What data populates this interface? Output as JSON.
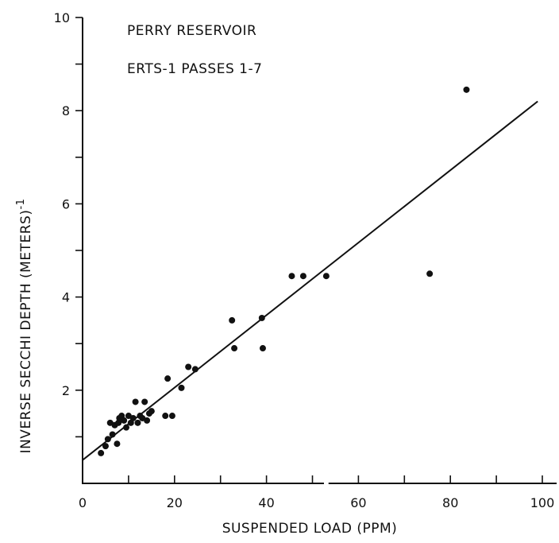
{
  "chart_data": {
    "type": "scatter",
    "title": "PERRY RESERVOIR",
    "subtitle": "ERTS-1  PASSES 1-7",
    "xlabel": "SUSPENDED LOAD (PPM)",
    "ylabel": "INVERSE SECCHI DEPTH (METERS)",
    "ylabel_superscript": "-1",
    "xlim": [
      0,
      100
    ],
    "ylim": [
      0,
      10
    ],
    "x_ticks": [
      "0",
      "20",
      "40",
      "60",
      "80",
      "100"
    ],
    "y_ticks": [
      "2",
      "4",
      "6",
      "8",
      "10"
    ],
    "grid": false,
    "points": [
      [
        4,
        0.65
      ],
      [
        5,
        0.8
      ],
      [
        5.5,
        0.95
      ],
      [
        6,
        1.3
      ],
      [
        6.5,
        1.05
      ],
      [
        7,
        1.25
      ],
      [
        7.5,
        0.85
      ],
      [
        7.8,
        1.3
      ],
      [
        8,
        1.4
      ],
      [
        8.5,
        1.45
      ],
      [
        9,
        1.35
      ],
      [
        9.5,
        1.2
      ],
      [
        10,
        1.45
      ],
      [
        10.5,
        1.3
      ],
      [
        11,
        1.4
      ],
      [
        11.5,
        1.75
      ],
      [
        12,
        1.3
      ],
      [
        12.5,
        1.45
      ],
      [
        13,
        1.4
      ],
      [
        13.5,
        1.75
      ],
      [
        14,
        1.35
      ],
      [
        14.5,
        1.5
      ],
      [
        15,
        1.55
      ],
      [
        18,
        1.45
      ],
      [
        19.5,
        1.45
      ],
      [
        18.5,
        2.25
      ],
      [
        21.5,
        2.05
      ],
      [
        23,
        2.5
      ],
      [
        24.5,
        2.45
      ],
      [
        32.5,
        3.5
      ],
      [
        33,
        2.9
      ],
      [
        39,
        3.55
      ],
      [
        39.2,
        2.9
      ],
      [
        45.5,
        4.45
      ],
      [
        48,
        4.45
      ],
      [
        53,
        4.45
      ],
      [
        75.5,
        4.5
      ],
      [
        83.5,
        8.45
      ]
    ],
    "fit_line": {
      "x": [
        0,
        99
      ],
      "y": [
        0.5,
        8.2
      ]
    }
  }
}
